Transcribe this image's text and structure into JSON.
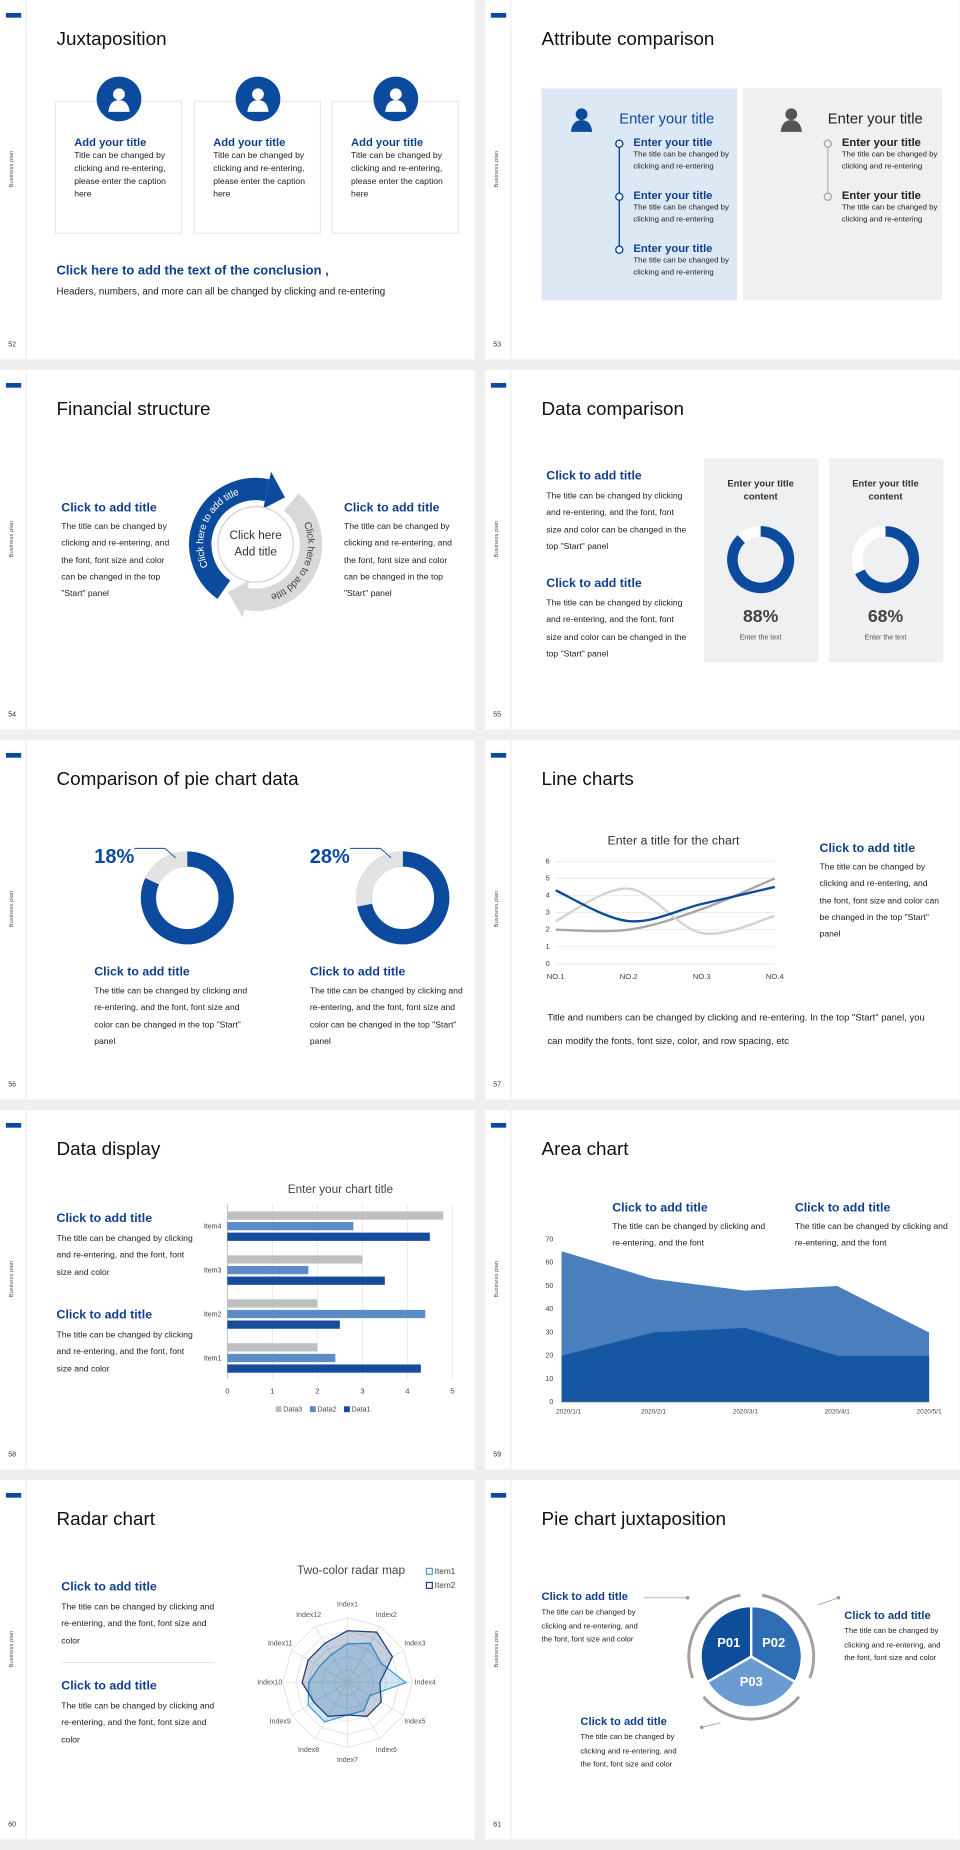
{
  "slides": [
    {
      "page": "52",
      "side_label": "Business plan",
      "title": "Juxtaposition",
      "cards": [
        {
          "title": "Add your title",
          "text": "Title can be changed by clicking and re-entering, please enter the caption here"
        },
        {
          "title": "Add your title",
          "text": "Title can be changed by clicking and re-entering, please enter the caption here"
        },
        {
          "title": "Add your title",
          "text": "Title can be changed by clicking and re-entering, please enter the caption here"
        }
      ],
      "conclusion": {
        "title": "Click here to add the text of the conclusion ,",
        "text": "Headers, numbers, and more can all be changed by clicking and re-entering"
      }
    },
    {
      "page": "53",
      "side_label": "Business plan",
      "title": "Attribute comparison",
      "panels": [
        {
          "title": "Enter your title",
          "items": [
            {
              "title": "Enter your title",
              "text": "The title can be changed by clicking and re-entering"
            },
            {
              "title": "Enter your title",
              "text": "The title can be changed by clicking and re-entering"
            },
            {
              "title": "Enter your title",
              "text": "The title can be changed by clicking and re-entering"
            }
          ]
        },
        {
          "title": "Enter your title",
          "items": [
            {
              "title": "Enter your title",
              "text": "The title can be changed by clicking and re-entering"
            },
            {
              "title": "Enter your title",
              "text": "The title can be changed by clicking and re-entering"
            }
          ]
        }
      ]
    },
    {
      "page": "54",
      "side_label": "Business plan",
      "title": "Financial structure",
      "blocks": [
        {
          "title": "Click to add title",
          "text": "The title can be changed by clicking and re-entering, and the font, font size and color can be changed in the top \"Start\" panel"
        },
        {
          "title": "Click to add title",
          "text": "The title can be changed by clicking and re-entering, and the font, font size and color can be changed in the top \"Start\" panel"
        }
      ],
      "cycle": {
        "center": [
          "Click here",
          "Add title"
        ],
        "arc_labels": [
          "Click here to add title",
          "Click here to add title"
        ]
      }
    },
    {
      "page": "55",
      "side_label": "Business plan",
      "title": "Data comparison",
      "blocks": [
        {
          "title": "Click to add title",
          "text": "The title can be changed by clicking and re-entering, and the font, font size and color can be changed in the top \"Start\" panel"
        },
        {
          "title": "Click to add title",
          "text": "The title can be changed by clicking and re-entering, and the font, font size and color can be changed in the top \"Start\" panel"
        }
      ],
      "donuts": [
        {
          "title": "Enter your title content",
          "value": 88,
          "value_label": "88%",
          "caption": "Enter the text"
        },
        {
          "title": "Enter your title content",
          "value": 68,
          "value_label": "68%",
          "caption": "Enter the text"
        }
      ]
    },
    {
      "page": "56",
      "side_label": "Business plan",
      "title": "Comparison of pie chart data",
      "donuts": [
        {
          "value": 18,
          "value_label": "18%",
          "title": "Click to add title",
          "text": "The title can be changed by clicking and re-entering, and the font, font size and color can be changed in the top \"Start\" panel"
        },
        {
          "value": 28,
          "value_label": "28%",
          "title": "Click to add title",
          "text": "The title can be changed by clicking and re-entering, and the font, font size and color can be changed in the top \"Start\" panel"
        }
      ]
    },
    {
      "page": "57",
      "side_label": "Business plan",
      "title": "Line charts",
      "chart": {
        "type": "line",
        "title": "Enter a title for the chart",
        "categories": [
          "NO.1",
          "NO.2",
          "NO.3",
          "NO.4"
        ],
        "series": [
          {
            "color": "#a6a6a6",
            "values": [
              2,
              2,
              3.2,
              5
            ]
          },
          {
            "color": "#d3d3d3",
            "values": [
              2.5,
              4.4,
              1.8,
              2.8
            ]
          },
          {
            "color": "#0b4a9c",
            "values": [
              4.3,
              2.5,
              3.5,
              4.5
            ]
          }
        ],
        "ylim": [
          0,
          6
        ],
        "yticks": [
          0,
          1,
          2,
          3,
          4,
          5,
          6
        ],
        "grid": true
      },
      "block": {
        "title": "Click to add title",
        "text": "The title can be changed by clicking and re-entering, and the font, font size and color can be changed in the top \"Start\" panel"
      },
      "note": "Title and numbers can be changed by clicking and re-entering. In the top \"Start\" panel, you can modify the fonts, font size, color, and row spacing, etc"
    },
    {
      "page": "58",
      "side_label": "Business plan",
      "title": "Data display",
      "blocks": [
        {
          "title": "Click to add title",
          "text": "The title can be changed by clicking and re-entering, and the font, font size and color"
        },
        {
          "title": "Click to add title",
          "text": "The title can be changed by clicking and re-entering, and the font, font size and color"
        }
      ],
      "chart": {
        "type": "bar",
        "orientation": "horizontal",
        "title": "Enter your chart title",
        "categories": [
          "Item1",
          "Item2",
          "Item3",
          "Item4"
        ],
        "series": [
          {
            "name": "Data3",
            "color": "#bfbfbf",
            "values": [
              2,
              2,
              3,
              4.8
            ]
          },
          {
            "name": "Data2",
            "color": "#5b8cc8",
            "values": [
              2.4,
              4.4,
              1.8,
              2.8
            ]
          },
          {
            "name": "Data1",
            "color": "#164c9c",
            "values": [
              4.3,
              2.5,
              3.5,
              4.5
            ]
          }
        ],
        "xlim": [
          0,
          5
        ],
        "xticks": [
          0,
          1,
          2,
          3,
          4,
          5
        ],
        "grid": true
      }
    },
    {
      "page": "59",
      "side_label": "Business plan",
      "title": "Area chart",
      "blocks": [
        {
          "title": "Click to add title",
          "text": "The title can be changed by clicking and re-entering, and the font"
        },
        {
          "title": "Click to add title",
          "text": "The title can be changed by clicking and re-entering, and the font"
        }
      ],
      "chart": {
        "type": "area",
        "categories": [
          "2020/1/1",
          "2020/2/1",
          "2020/3/1",
          "2020/4/1",
          "2020/5/1"
        ],
        "series": [
          {
            "color": "#4a7ebd",
            "values": [
              65,
              53,
              48,
              50,
              30
            ]
          },
          {
            "color": "#1557a3",
            "values": [
              20,
              30,
              32,
              20,
              20
            ]
          }
        ],
        "ylim": [
          0,
          70
        ],
        "yticks": [
          0,
          10,
          20,
          30,
          40,
          50,
          60,
          70
        ]
      }
    },
    {
      "page": "60",
      "side_label": "Business plan",
      "title": "Radar chart",
      "blocks": [
        {
          "title": "Click to add title",
          "text": "The title can be changed by clicking and re-entering, and the font, font size and color"
        },
        {
          "title": "Click to add title",
          "text": "The title can be changed by clicking and re-entering, and the font, font size and color"
        }
      ],
      "chart": {
        "type": "radar",
        "title": "Two-color radar map",
        "categories": [
          "Index1",
          "Index2",
          "Index3",
          "Index4",
          "Index5",
          "Index6",
          "Index7",
          "Index8",
          "Index9",
          "Index10",
          "Index11",
          "Index12"
        ],
        "series": [
          {
            "name": "Item1",
            "color": "#3f9fd8",
            "values": [
              3,
              3.5,
              3,
              4.5,
              2,
              2.5,
              2.5,
              3.5,
              3.5,
              3,
              2.5,
              2.5
            ]
          },
          {
            "name": "Item2",
            "color": "#1d3f7c",
            "values": [
              4,
              4.5,
              4,
              2.5,
              3,
              3,
              2.5,
              3,
              3,
              3.5,
              3.5,
              3.5
            ]
          }
        ],
        "rlim": [
          0,
          5
        ]
      }
    },
    {
      "page": "61",
      "side_label": "Business plan",
      "title": "Pie chart juxtaposition",
      "segments": [
        "P01",
        "P02",
        "P03"
      ],
      "blocks": [
        {
          "title": "Click to add title",
          "text": "The title can be changed by clicking and re-entering, and the font, font size and color"
        },
        {
          "title": "Click to add title",
          "text": "The title can be changed by clicking and re-entering, and the font, font size and color"
        },
        {
          "title": "Click to add title",
          "text": "The title can be changed by clicking and re-entering, and the font, font size and color"
        }
      ]
    }
  ]
}
